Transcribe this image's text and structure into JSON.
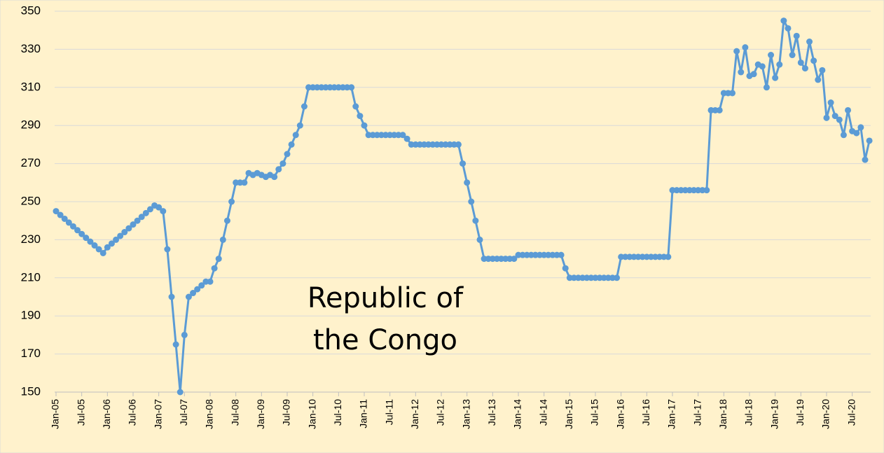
{
  "chart_data": {
    "type": "line",
    "annotation": [
      "Republic of",
      "the Congo"
    ],
    "color": "#5b9bd5",
    "grid": true,
    "ylim": [
      150,
      350
    ],
    "yticks": [
      150,
      170,
      190,
      210,
      230,
      250,
      270,
      290,
      310,
      330,
      350
    ],
    "categories": [
      "Jan-05",
      null,
      null,
      null,
      null,
      null,
      "Jul-05",
      null,
      null,
      null,
      null,
      null,
      "Jan-06",
      null,
      null,
      null,
      null,
      null,
      "Jul-06",
      null,
      null,
      null,
      null,
      null,
      "Jan-07",
      null,
      null,
      null,
      null,
      null,
      "Jul-07",
      null,
      null,
      null,
      null,
      null,
      "Jan-08",
      null,
      null,
      null,
      null,
      null,
      "Jul-08",
      null,
      null,
      null,
      null,
      null,
      "Jan-09",
      null,
      null,
      null,
      null,
      null,
      "Jul-09",
      null,
      null,
      null,
      null,
      null,
      "Jan-10",
      null,
      null,
      null,
      null,
      null,
      "Jul-10",
      null,
      null,
      null,
      null,
      null,
      "Jan-11",
      null,
      null,
      null,
      null,
      null,
      "Jul-11",
      null,
      null,
      null,
      null,
      null,
      "Jan-12",
      null,
      null,
      null,
      null,
      null,
      "Jul-12",
      null,
      null,
      null,
      null,
      null,
      "Jan-13",
      null,
      null,
      null,
      null,
      null,
      "Jul-13",
      null,
      null,
      null,
      null,
      null,
      "Jan-14",
      null,
      null,
      null,
      null,
      null,
      "Jul-14",
      null,
      null,
      null,
      null,
      null,
      "Jan-15",
      null,
      null,
      null,
      null,
      null,
      "Jul-15",
      null,
      null,
      null,
      null,
      null,
      "Jan-16",
      null,
      null,
      null,
      null,
      null,
      "Jul-16",
      null,
      null,
      null,
      null,
      null,
      "Jan-17",
      null,
      null,
      null,
      null,
      null,
      "Jul-17",
      null,
      null,
      null,
      null,
      null,
      "Jan-18",
      null,
      null,
      null,
      null,
      null,
      "Jul-18",
      null,
      null,
      null,
      null,
      null,
      "Jan-19",
      null,
      null,
      null,
      null,
      null,
      "Jul-19",
      null,
      null,
      null,
      null,
      null,
      "Jan-20",
      null,
      null,
      null,
      null,
      null,
      "Jul-20",
      null,
      null,
      null,
      null
    ],
    "values": [
      245,
      243,
      241,
      239,
      237,
      235,
      233,
      231,
      229,
      227,
      225,
      223,
      226,
      228,
      230,
      232,
      234,
      236,
      238,
      240,
      242,
      244,
      246,
      248,
      247,
      245,
      225,
      200,
      175,
      150,
      180,
      200,
      202,
      204,
      206,
      208,
      208,
      215,
      220,
      230,
      240,
      250,
      260,
      260,
      260,
      265,
      264,
      265,
      264,
      263,
      264,
      263,
      267,
      270,
      275,
      280,
      285,
      290,
      300,
      310,
      310,
      310,
      310,
      310,
      310,
      310,
      310,
      310,
      310,
      310,
      300,
      295,
      290,
      285,
      285,
      285,
      285,
      285,
      285,
      285,
      285,
      285,
      283,
      280,
      280,
      280,
      280,
      280,
      280,
      280,
      280,
      280,
      280,
      280,
      280,
      270,
      260,
      250,
      240,
      230,
      220,
      220,
      220,
      220,
      220,
      220,
      220,
      220,
      222,
      222,
      222,
      222,
      222,
      222,
      222,
      222,
      222,
      222,
      222,
      215,
      210,
      210,
      210,
      210,
      210,
      210,
      210,
      210,
      210,
      210,
      210,
      210,
      221,
      221,
      221,
      221,
      221,
      221,
      221,
      221,
      221,
      221,
      221,
      221,
      256,
      256,
      256,
      256,
      256,
      256,
      256,
      256,
      256,
      298,
      298,
      298,
      307,
      307,
      307,
      329,
      318,
      331,
      316,
      317,
      322,
      321,
      310,
      327,
      315,
      322,
      345,
      341,
      327,
      337,
      323,
      320,
      334,
      324,
      314,
      319,
      294,
      302,
      295,
      293,
      285,
      298,
      287,
      286,
      289,
      272,
      282
    ]
  }
}
